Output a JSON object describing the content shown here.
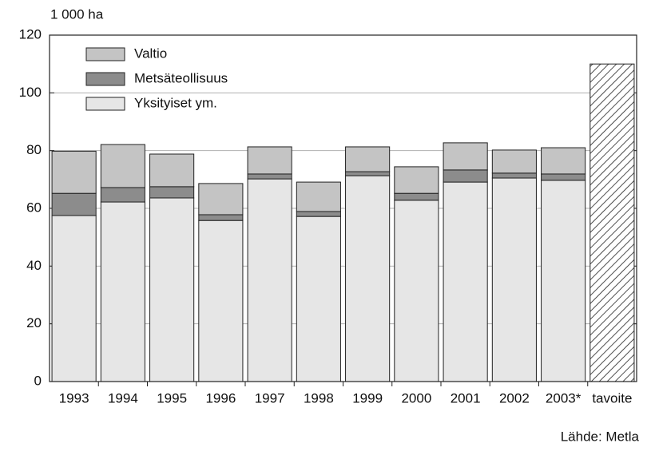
{
  "chart_data": {
    "type": "stacked_bar",
    "y_unit_label": "1 000 ha",
    "source": "Lähde: Metla",
    "categories": [
      "1993",
      "1994",
      "1995",
      "1996",
      "1997",
      "1998",
      "1999",
      "2000",
      "2001",
      "2002",
      "2003*",
      "tavoite"
    ],
    "series": [
      {
        "name": "Yksityiset ym.",
        "color": "#e6e6e6",
        "values": [
          57.5,
          62.2,
          63.6,
          55.8,
          70.2,
          57.2,
          71.3,
          62.8,
          69.1,
          70.5,
          69.7,
          null
        ]
      },
      {
        "name": "Metsäteollisuus",
        "color": "#8c8c8c",
        "values": [
          7.7,
          5.0,
          3.9,
          2.0,
          1.7,
          1.7,
          1.4,
          2.4,
          4.2,
          1.7,
          2.2,
          null
        ]
      },
      {
        "name": "Valtio",
        "color": "#c4c4c4",
        "values": [
          14.6,
          14.9,
          11.3,
          10.8,
          9.4,
          10.2,
          8.6,
          9.2,
          9.4,
          8.0,
          9.1,
          null
        ]
      },
      {
        "color": "#ffffff",
        "hatch": true,
        "values": [
          null,
          null,
          null,
          null,
          null,
          null,
          null,
          null,
          null,
          null,
          null,
          110
        ]
      }
    ],
    "ylim": [
      0,
      120
    ],
    "yticks": [
      0,
      20,
      40,
      60,
      80,
      100,
      120
    ],
    "grid": true,
    "legend": "upper left"
  }
}
